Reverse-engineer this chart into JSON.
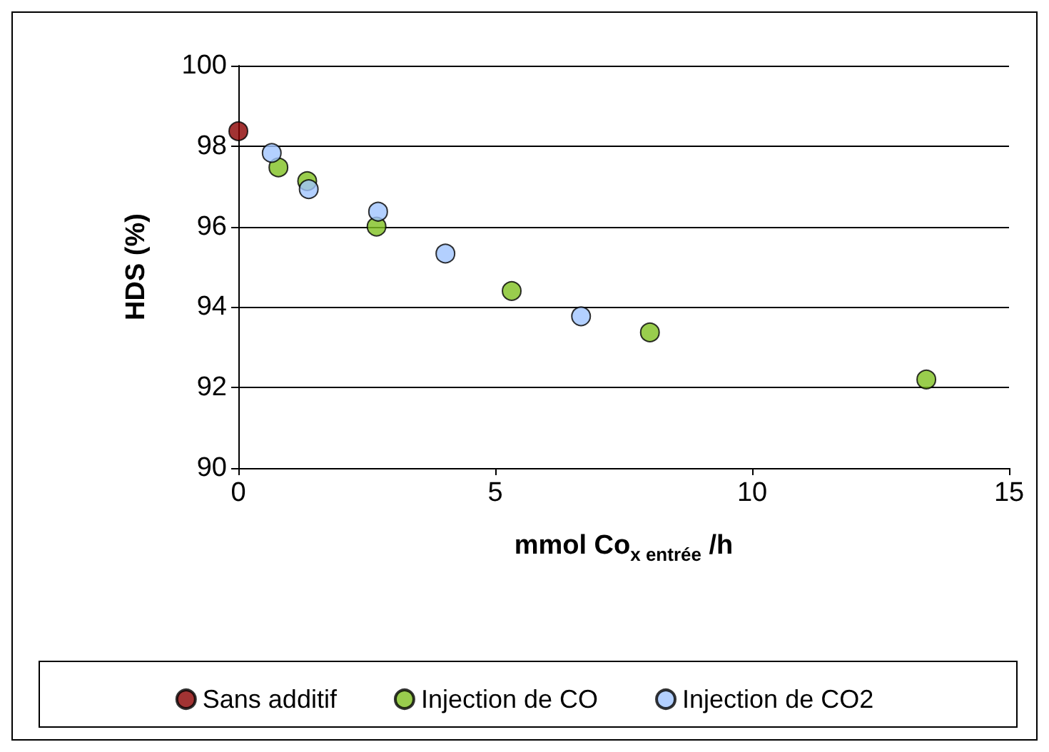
{
  "chart_data": {
    "type": "scatter",
    "xlabel": "mmol Co$_{x entrée}$ /h",
    "ylabel": "HDS (%)",
    "xlim": [
      0,
      15
    ],
    "xticks": [
      0,
      5,
      10,
      15
    ],
    "ylim": [
      90,
      100
    ],
    "yticks": [
      90,
      92,
      94,
      96,
      98,
      100
    ],
    "grid": "y",
    "legend": "bottom",
    "marker": "circle",
    "series": [
      {
        "name": "Sans additif",
        "color": "#8b0000",
        "x": [
          0
        ],
        "values": [
          98.37
        ]
      },
      {
        "name": "Injection de CO",
        "color": "#80c020",
        "x": [
          0.78,
          1.34,
          2.69,
          5.32,
          8.01,
          13.39
        ],
        "values": [
          97.47,
          97.13,
          96.0,
          94.4,
          93.37,
          92.2
        ]
      },
      {
        "name": "Injection de CO2",
        "color": "#a0c4ff",
        "x": [
          0.65,
          1.37,
          2.72,
          4.03,
          6.67
        ],
        "values": [
          97.83,
          96.93,
          96.37,
          95.33,
          93.77
        ]
      }
    ]
  }
}
